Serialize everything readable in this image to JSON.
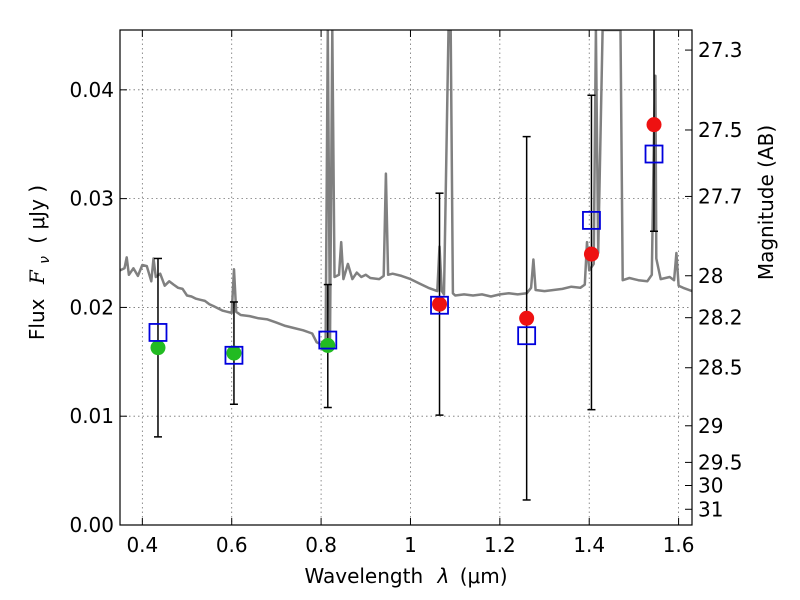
{
  "chart_data": {
    "type": "scatter",
    "xlabel_prefix": "Wavelength",
    "xlabel_symbol": "λ",
    "xlabel_unit": "(μm)",
    "ylabel_prefix": "Flux",
    "ylabel_symbol": "F",
    "ylabel_sub": "ν",
    "ylabel_unit": "( μJy )",
    "y2label": "Magnitude (AB)",
    "xlim": [
      0.35,
      1.63
    ],
    "ylim": [
      0.0,
      0.0455
    ],
    "xticks": [
      0.4,
      0.6,
      0.8,
      1.0,
      1.2,
      1.4,
      1.6
    ],
    "xtick_labels": [
      "0.4",
      "0.6",
      "0.8",
      "1",
      "1.2",
      "1.4",
      "1.6"
    ],
    "yticks": [
      0.0,
      0.01,
      0.02,
      0.03,
      0.04
    ],
    "ytick_labels": [
      "0.00",
      "0.01",
      "0.02",
      "0.03",
      "0.04"
    ],
    "y2ticks": [
      {
        "value": 27.3,
        "label": "27.3"
      },
      {
        "value": 27.5,
        "label": "27.5"
      },
      {
        "value": 27.7,
        "label": "27.7"
      },
      {
        "value": 28.0,
        "label": "28"
      },
      {
        "value": 28.2,
        "label": "28.2"
      },
      {
        "value": 28.5,
        "label": "28.5"
      },
      {
        "value": 29.0,
        "label": "29"
      },
      {
        "value": 29.5,
        "label": "29.5"
      },
      {
        "value": 30.0,
        "label": "30"
      },
      {
        "value": 31.0,
        "label": "31"
      }
    ],
    "grid": true,
    "observed": [
      {
        "x": 0.435,
        "y": 0.0163,
        "err_lo": 0.0081,
        "err_hi": 0.0245,
        "color": "#22bb22"
      },
      {
        "x": 0.605,
        "y": 0.0158,
        "err_lo": 0.0111,
        "err_hi": 0.0205,
        "color": "#22bb22"
      },
      {
        "x": 0.815,
        "y": 0.0165,
        "err_lo": 0.0108,
        "err_hi": 0.0221,
        "color": "#22bb22"
      },
      {
        "x": 1.065,
        "y": 0.0203,
        "err_lo": 0.0101,
        "err_hi": 0.0305,
        "color": "#ee1111"
      },
      {
        "x": 1.26,
        "y": 0.019,
        "err_lo": 0.0023,
        "err_hi": 0.0357,
        "color": "#ee1111"
      },
      {
        "x": 1.405,
        "y": 0.0249,
        "err_lo": 0.0106,
        "err_hi": 0.0395,
        "color": "#ee1111"
      },
      {
        "x": 1.545,
        "y": 0.0368,
        "err_lo": 0.027,
        "err_hi": 0.0456,
        "color": "#ee1111"
      }
    ],
    "model_photometry": [
      {
        "x": 0.435,
        "y": 0.0177
      },
      {
        "x": 0.605,
        "y": 0.0156
      },
      {
        "x": 0.815,
        "y": 0.017
      },
      {
        "x": 1.065,
        "y": 0.0202
      },
      {
        "x": 1.26,
        "y": 0.0174
      },
      {
        "x": 1.405,
        "y": 0.028
      },
      {
        "x": 1.545,
        "y": 0.0341
      }
    ],
    "spectrum": [
      [
        0.35,
        0.0234
      ],
      [
        0.36,
        0.0236
      ],
      [
        0.365,
        0.0246
      ],
      [
        0.37,
        0.023
      ],
      [
        0.38,
        0.0236
      ],
      [
        0.39,
        0.0229
      ],
      [
        0.4,
        0.0239
      ],
      [
        0.41,
        0.0238
      ],
      [
        0.42,
        0.0224
      ],
      [
        0.425,
        0.0245
      ],
      [
        0.43,
        0.0228
      ],
      [
        0.44,
        0.0231
      ],
      [
        0.45,
        0.022
      ],
      [
        0.46,
        0.0224
      ],
      [
        0.47,
        0.0221
      ],
      [
        0.48,
        0.0218
      ],
      [
        0.49,
        0.0217
      ],
      [
        0.5,
        0.0211
      ],
      [
        0.51,
        0.021
      ],
      [
        0.52,
        0.0208
      ],
      [
        0.53,
        0.0207
      ],
      [
        0.54,
        0.0206
      ],
      [
        0.55,
        0.0203
      ],
      [
        0.56,
        0.0201
      ],
      [
        0.57,
        0.0199
      ],
      [
        0.58,
        0.0197
      ],
      [
        0.59,
        0.0196
      ],
      [
        0.6,
        0.0195
      ],
      [
        0.605,
        0.0235
      ],
      [
        0.61,
        0.0196
      ],
      [
        0.62,
        0.0193
      ],
      [
        0.64,
        0.0192
      ],
      [
        0.66,
        0.019
      ],
      [
        0.68,
        0.0189
      ],
      [
        0.7,
        0.0186
      ],
      [
        0.72,
        0.0183
      ],
      [
        0.74,
        0.0181
      ],
      [
        0.76,
        0.0179
      ],
      [
        0.78,
        0.0176
      ],
      [
        0.79,
        0.0168
      ],
      [
        0.8,
        0.0166
      ],
      [
        0.81,
        0.0165
      ],
      [
        0.815,
        0.0455
      ],
      [
        0.82,
        0.0168
      ],
      [
        0.825,
        0.0455
      ],
      [
        0.83,
        0.0228
      ],
      [
        0.84,
        0.023
      ],
      [
        0.845,
        0.026
      ],
      [
        0.85,
        0.0226
      ],
      [
        0.86,
        0.024
      ],
      [
        0.87,
        0.0226
      ],
      [
        0.88,
        0.0232
      ],
      [
        0.89,
        0.0228
      ],
      [
        0.9,
        0.023
      ],
      [
        0.91,
        0.0227
      ],
      [
        0.93,
        0.0226
      ],
      [
        0.94,
        0.0229
      ],
      [
        0.945,
        0.0323
      ],
      [
        0.95,
        0.023
      ],
      [
        0.96,
        0.0231
      ],
      [
        0.98,
        0.0229
      ],
      [
        1.0,
        0.0226
      ],
      [
        1.02,
        0.0222
      ],
      [
        1.04,
        0.0218
      ],
      [
        1.06,
        0.0215
      ],
      [
        1.065,
        0.0256
      ],
      [
        1.07,
        0.0215
      ],
      [
        1.075,
        0.0212
      ],
      [
        1.085,
        0.0455
      ],
      [
        1.09,
        0.0455
      ],
      [
        1.095,
        0.0213
      ],
      [
        1.1,
        0.0211
      ],
      [
        1.12,
        0.0212
      ],
      [
        1.14,
        0.0211
      ],
      [
        1.16,
        0.0212
      ],
      [
        1.18,
        0.021
      ],
      [
        1.2,
        0.0212
      ],
      [
        1.22,
        0.0213
      ],
      [
        1.24,
        0.0212
      ],
      [
        1.26,
        0.0213
      ],
      [
        1.27,
        0.0218
      ],
      [
        1.275,
        0.0244
      ],
      [
        1.28,
        0.0216
      ],
      [
        1.3,
        0.0215
      ],
      [
        1.32,
        0.0216
      ],
      [
        1.34,
        0.0217
      ],
      [
        1.36,
        0.0219
      ],
      [
        1.38,
        0.0218
      ],
      [
        1.39,
        0.0221
      ],
      [
        1.395,
        0.026
      ],
      [
        1.4,
        0.0234
      ],
      [
        1.41,
        0.024
      ],
      [
        1.415,
        0.0455
      ],
      [
        1.42,
        0.025
      ],
      [
        1.43,
        0.0455
      ],
      [
        1.44,
        0.0455
      ],
      [
        1.45,
        0.0455
      ],
      [
        1.47,
        0.0455
      ],
      [
        1.475,
        0.0225
      ],
      [
        1.49,
        0.0227
      ],
      [
        1.51,
        0.0225
      ],
      [
        1.53,
        0.0224
      ],
      [
        1.54,
        0.023
      ],
      [
        1.545,
        0.036
      ],
      [
        1.548,
        0.0413
      ],
      [
        1.55,
        0.0245
      ],
      [
        1.56,
        0.0226
      ],
      [
        1.58,
        0.0228
      ],
      [
        1.59,
        0.0225
      ],
      [
        1.595,
        0.025
      ],
      [
        1.6,
        0.022
      ],
      [
        1.61,
        0.0218
      ],
      [
        1.63,
        0.0215
      ]
    ]
  }
}
